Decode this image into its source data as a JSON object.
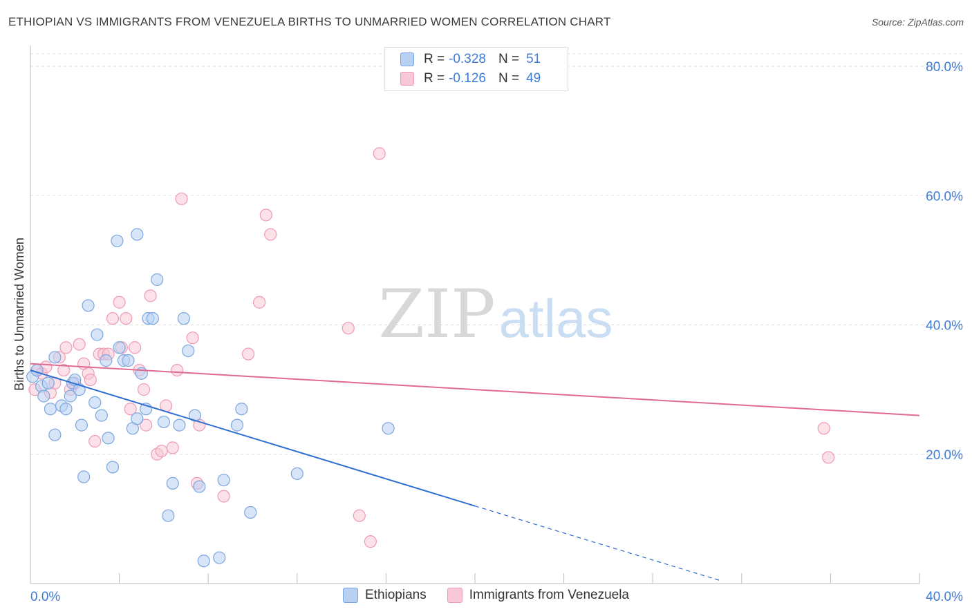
{
  "header": {
    "title": "ETHIOPIAN VS IMMIGRANTS FROM VENEZUELA BIRTHS TO UNMARRIED WOMEN CORRELATION CHART",
    "source": "Source: ZipAtlas.com"
  },
  "watermark": {
    "part1": "ZIP",
    "part2": "atlas"
  },
  "legend": {
    "r_label": "R =",
    "n_label": "N =",
    "rows": [
      {
        "r": "-0.328",
        "n": "51"
      },
      {
        "r": "-0.126",
        "n": "49"
      }
    ]
  },
  "colors": {
    "blue_fill": "#b8d0f2",
    "blue_stroke": "#7aa6e0",
    "blue_line": "#2f6fd1",
    "pink_fill": "#f9c8d6",
    "pink_stroke": "#ee9ab4",
    "pink_line": "#e06a93",
    "axis_label": "#3d7bd8",
    "grid": "#dddddd"
  },
  "chart_data": {
    "type": "scatter",
    "ylabel": "Births to Unmarried Women",
    "xlabel": "",
    "xlim": [
      0,
      40
    ],
    "ylim": [
      0,
      80
    ],
    "x_tick_labels": [
      "0.0%",
      "40.0%"
    ],
    "y_tick_labels": [
      "20.0%",
      "40.0%",
      "60.0%",
      "80.0%"
    ],
    "y_ticks": [
      20,
      40,
      60,
      80
    ],
    "grid": true,
    "legend_position": "top-center",
    "series": [
      {
        "name": "Ethiopians",
        "r": -0.328,
        "n": 51,
        "trend": {
          "x": [
            0,
            20
          ],
          "y": [
            33.0,
            12.0
          ],
          "dashed_to": [
            31,
            0.5
          ]
        },
        "points": [
          [
            0.1,
            32.0
          ],
          [
            0.3,
            33.0
          ],
          [
            0.5,
            30.5
          ],
          [
            0.6,
            29.0
          ],
          [
            0.8,
            31.0
          ],
          [
            0.9,
            27.0
          ],
          [
            1.1,
            23.0
          ],
          [
            1.1,
            35.0
          ],
          [
            1.4,
            27.5
          ],
          [
            1.6,
            27.0
          ],
          [
            1.8,
            29.0
          ],
          [
            1.9,
            31.0
          ],
          [
            2.0,
            31.5
          ],
          [
            2.2,
            30.0
          ],
          [
            2.3,
            24.5
          ],
          [
            2.4,
            16.5
          ],
          [
            2.6,
            43.0
          ],
          [
            2.9,
            28.0
          ],
          [
            3.0,
            38.5
          ],
          [
            3.2,
            26.0
          ],
          [
            3.4,
            34.5
          ],
          [
            3.5,
            22.5
          ],
          [
            3.7,
            18.0
          ],
          [
            3.9,
            53.0
          ],
          [
            4.0,
            36.5
          ],
          [
            4.2,
            34.5
          ],
          [
            4.4,
            34.5
          ],
          [
            4.6,
            24.0
          ],
          [
            4.8,
            54.0
          ],
          [
            4.8,
            25.5
          ],
          [
            5.0,
            32.5
          ],
          [
            5.2,
            27.0
          ],
          [
            5.3,
            41.0
          ],
          [
            5.5,
            41.0
          ],
          [
            5.7,
            47.0
          ],
          [
            6.0,
            25.0
          ],
          [
            6.2,
            10.5
          ],
          [
            6.4,
            15.5
          ],
          [
            6.7,
            24.5
          ],
          [
            6.9,
            41.0
          ],
          [
            7.1,
            36.0
          ],
          [
            7.4,
            26.0
          ],
          [
            7.6,
            15.0
          ],
          [
            7.8,
            3.5
          ],
          [
            8.5,
            4.0
          ],
          [
            8.7,
            16.0
          ],
          [
            9.3,
            24.5
          ],
          [
            9.5,
            27.0
          ],
          [
            9.9,
            11.0
          ],
          [
            12.0,
            17.0
          ],
          [
            16.1,
            24.0
          ]
        ]
      },
      {
        "name": "Immigrants from Venezuela",
        "r": -0.126,
        "n": 49,
        "trend": {
          "x": [
            0,
            40
          ],
          "y": [
            34.0,
            26.0
          ]
        },
        "points": [
          [
            0.2,
            30.0
          ],
          [
            0.3,
            33.0
          ],
          [
            0.5,
            32.5
          ],
          [
            0.7,
            33.5
          ],
          [
            0.9,
            29.5
          ],
          [
            1.1,
            31.0
          ],
          [
            1.3,
            35.0
          ],
          [
            1.5,
            33.0
          ],
          [
            1.6,
            36.5
          ],
          [
            1.8,
            30.0
          ],
          [
            2.0,
            31.0
          ],
          [
            2.2,
            37.0
          ],
          [
            2.4,
            34.0
          ],
          [
            2.6,
            32.5
          ],
          [
            2.7,
            31.5
          ],
          [
            2.9,
            22.0
          ],
          [
            3.1,
            35.5
          ],
          [
            3.3,
            35.5
          ],
          [
            3.5,
            35.5
          ],
          [
            3.7,
            41.0
          ],
          [
            4.0,
            43.5
          ],
          [
            4.1,
            36.5
          ],
          [
            4.3,
            41.0
          ],
          [
            4.5,
            27.0
          ],
          [
            4.7,
            36.5
          ],
          [
            4.9,
            33.0
          ],
          [
            5.1,
            30.0
          ],
          [
            5.2,
            24.5
          ],
          [
            5.4,
            44.5
          ],
          [
            5.7,
            20.0
          ],
          [
            5.9,
            20.5
          ],
          [
            6.1,
            27.5
          ],
          [
            6.4,
            21.0
          ],
          [
            6.6,
            33.0
          ],
          [
            6.8,
            59.5
          ],
          [
            7.3,
            38.0
          ],
          [
            7.5,
            15.5
          ],
          [
            7.6,
            24.5
          ],
          [
            8.7,
            13.5
          ],
          [
            9.8,
            35.5
          ],
          [
            10.3,
            43.5
          ],
          [
            10.6,
            57.0
          ],
          [
            10.8,
            54.0
          ],
          [
            14.3,
            39.5
          ],
          [
            14.8,
            10.5
          ],
          [
            15.3,
            6.5
          ],
          [
            15.7,
            66.5
          ],
          [
            35.7,
            24.0
          ],
          [
            35.9,
            19.5
          ]
        ]
      }
    ]
  }
}
